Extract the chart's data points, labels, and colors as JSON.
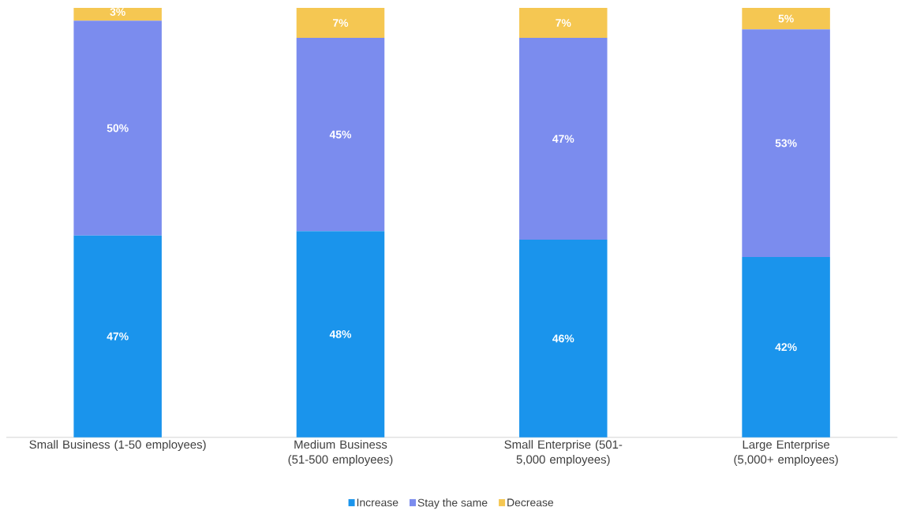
{
  "chart_data": {
    "type": "bar",
    "stacked": true,
    "categories": [
      "Small Business (1-50 employees)",
      "Medium Business (51-500 employees)",
      "Small Enterprise (501-5,000 employees)",
      "Large Enterprise (5,000+ employees)"
    ],
    "ylim": [
      0,
      100
    ],
    "tick_labels": "x",
    "legend": "bottom",
    "series": [
      {
        "name": "Increase",
        "color": "#1a94ec",
        "values": [
          47,
          48,
          46,
          42
        ],
        "value_labels": [
          "47%",
          "48%",
          "46%",
          "42%"
        ]
      },
      {
        "name": "Stay the same",
        "color": "#7b8cee",
        "values": [
          50,
          45,
          47,
          53
        ],
        "value_labels": [
          "50%",
          "45%",
          "47%",
          "53%"
        ]
      },
      {
        "name": "Decrease",
        "color": "#f5c752",
        "values": [
          3,
          7,
          7,
          5
        ],
        "value_labels": [
          "3%",
          "7%",
          "7%",
          "5%"
        ]
      }
    ]
  }
}
